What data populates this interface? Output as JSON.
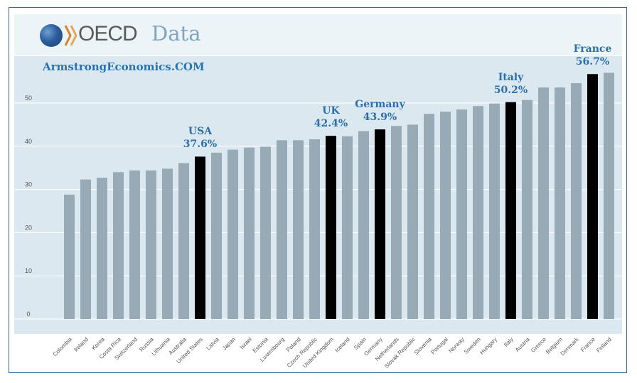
{
  "logo": {
    "brand": "OECD",
    "section": "Data"
  },
  "watermark": "ArmstrongEconomics.COM",
  "colors": {
    "bar": "#98aab6",
    "highlight_bar": "#000000",
    "plot_background": "#dce8f0",
    "annotation": "#2a6fa8",
    "frame": "#2f6e8f"
  },
  "chart_data": {
    "type": "bar",
    "title": "",
    "xlabel": "",
    "ylabel": "",
    "ylim": [
      0,
      60
    ],
    "yticks": [
      0,
      10,
      20,
      30,
      40,
      50
    ],
    "grid": true,
    "categories": [
      "Colombia",
      "Ireland",
      "Korea",
      "Costa Rica",
      "Switzerland",
      "Russia",
      "Lithuania",
      "Australia",
      "United States",
      "Latvia",
      "Japan",
      "Israel",
      "Estonia",
      "Luxembourg",
      "Poland",
      "Czech Republic",
      "United Kingdom",
      "Iceland",
      "Spain",
      "Germany",
      "Netherlands",
      "Slovak Republic",
      "Slovenia",
      "Portugal",
      "Norway",
      "Sweden",
      "Hungary",
      "Italy",
      "Austria",
      "Greece",
      "Belgium",
      "Denmark",
      "France",
      "Finland"
    ],
    "values": [
      28.8,
      32.3,
      32.7,
      34.0,
      34.4,
      34.4,
      34.8,
      36.1,
      37.6,
      38.5,
      39.2,
      39.7,
      39.9,
      41.4,
      41.4,
      41.6,
      42.4,
      42.3,
      43.5,
      43.9,
      44.7,
      45.0,
      47.5,
      48.0,
      48.5,
      49.3,
      49.9,
      50.2,
      50.7,
      53.6,
      53.6,
      54.6,
      56.7,
      57.0
    ],
    "highlighted": [
      "United States",
      "United Kingdom",
      "Germany",
      "Italy",
      "France"
    ],
    "annotations": [
      {
        "category": "United States",
        "name": "USA",
        "value": "37.6%"
      },
      {
        "category": "United Kingdom",
        "name": "UK",
        "value": "42.4%"
      },
      {
        "category": "Germany",
        "name": "Germany",
        "value": "43.9%"
      },
      {
        "category": "Italy",
        "name": "Italy",
        "value": "50.2%"
      },
      {
        "category": "France",
        "name": "France",
        "value": "56.7%"
      }
    ]
  }
}
